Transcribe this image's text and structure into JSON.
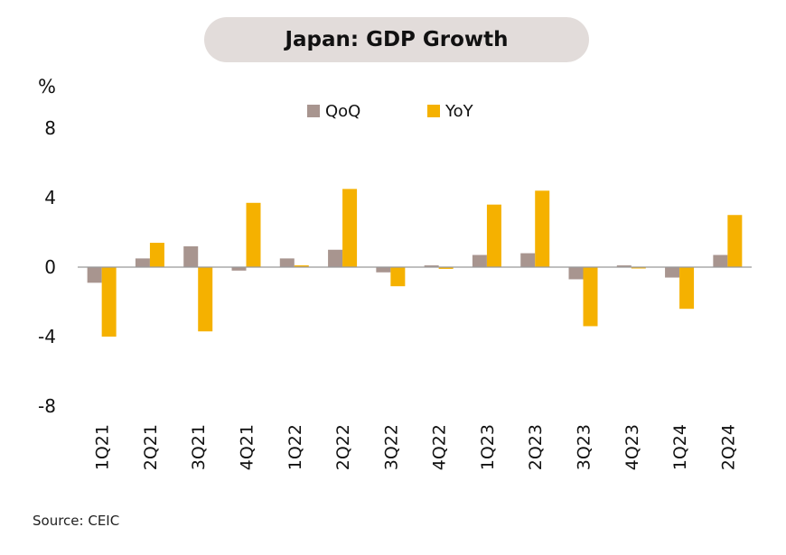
{
  "header": {
    "title": "Japan: GDP Growth"
  },
  "footer": {
    "source": "Source: CEIC"
  },
  "chart_data": {
    "type": "bar",
    "title": "Japan: GDP Growth",
    "ylabel": "%",
    "xlabel": "",
    "ylim": [
      -8,
      8
    ],
    "yticks": [
      8,
      4,
      0,
      -4,
      -8
    ],
    "ytick_labels": [
      "8",
      "4",
      "0",
      "-4",
      "-8"
    ],
    "grid": false,
    "legend_position": "top-center",
    "categories": [
      "1Q21",
      "2Q21",
      "3Q21",
      "4Q21",
      "1Q22",
      "2Q22",
      "3Q22",
      "4Q22",
      "1Q23",
      "2Q23",
      "3Q23",
      "4Q23",
      "1Q24",
      "2Q24"
    ],
    "series": [
      {
        "name": "QoQ",
        "color": "#a8958f",
        "values": [
          -0.9,
          0.5,
          1.2,
          -0.2,
          0.5,
          1.0,
          -0.3,
          0.1,
          0.7,
          0.8,
          -0.7,
          0.1,
          -0.6,
          0.7
        ]
      },
      {
        "name": "YoY",
        "color": "#f5b100",
        "values": [
          -4.0,
          1.4,
          -3.7,
          3.7,
          0.1,
          4.5,
          -1.1,
          -0.1,
          3.6,
          4.4,
          -3.4,
          0.0,
          -2.4,
          3.0
        ]
      }
    ],
    "source": "Source: CEIC"
  }
}
